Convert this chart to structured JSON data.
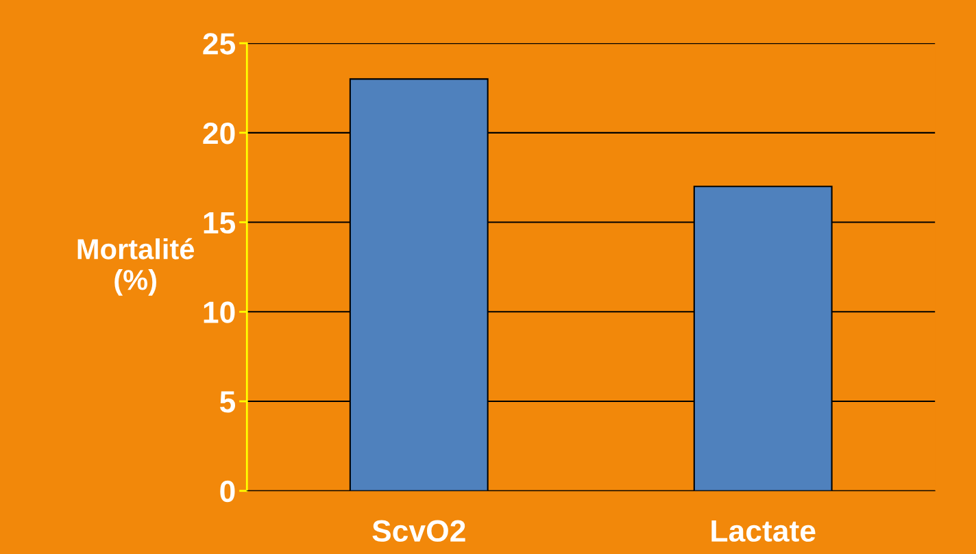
{
  "chart_data": {
    "type": "bar",
    "ylabel": "Mortalité\n(%)",
    "categories": [
      "ScvO2",
      "Lactate"
    ],
    "values": [
      23,
      17
    ],
    "color": "#4f81bd",
    "ylim": [
      0,
      25
    ],
    "yticks": [
      0,
      5,
      10,
      15,
      20,
      25
    ],
    "grid": "y"
  }
}
